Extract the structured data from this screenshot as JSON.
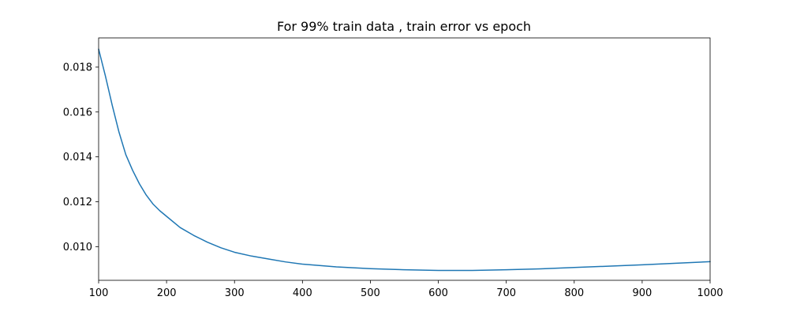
{
  "chart_data": {
    "type": "line",
    "title": "For 99% train data , train error vs epoch",
    "xlabel": "",
    "ylabel": "",
    "xlim": [
      100,
      1000
    ],
    "ylim": [
      0.0085,
      0.0193
    ],
    "grid": false,
    "legend": "none",
    "x_ticks": [
      100,
      200,
      300,
      400,
      500,
      600,
      700,
      800,
      900,
      1000
    ],
    "x_tick_labels": [
      "100",
      "200",
      "300",
      "400",
      "500",
      "600",
      "700",
      "800",
      "900",
      "1000"
    ],
    "y_ticks": [
      0.01,
      0.012,
      0.014,
      0.016,
      0.018
    ],
    "y_tick_labels": [
      "0.010",
      "0.012",
      "0.014",
      "0.016",
      "0.018"
    ],
    "line_color": "#1f77b4",
    "series": [
      {
        "x": [
          100,
          110,
          120,
          130,
          140,
          150,
          160,
          170,
          180,
          190,
          200,
          220,
          240,
          260,
          280,
          300,
          325,
          350,
          375,
          400,
          450,
          500,
          550,
          600,
          650,
          700,
          750,
          800,
          850,
          900,
          950,
          1000
        ],
        "values": [
          0.0188,
          0.0176,
          0.0163,
          0.0151,
          0.0141,
          0.0134,
          0.0128,
          0.0123,
          0.0119,
          0.0116,
          0.01135,
          0.01085,
          0.0105,
          0.0102,
          0.00995,
          0.00975,
          0.00958,
          0.00945,
          0.00932,
          0.00922,
          0.0091,
          0.00902,
          0.00897,
          0.00894,
          0.00894,
          0.00897,
          0.00901,
          0.00907,
          0.00913,
          0.00919,
          0.00926,
          0.00933
        ]
      }
    ]
  }
}
